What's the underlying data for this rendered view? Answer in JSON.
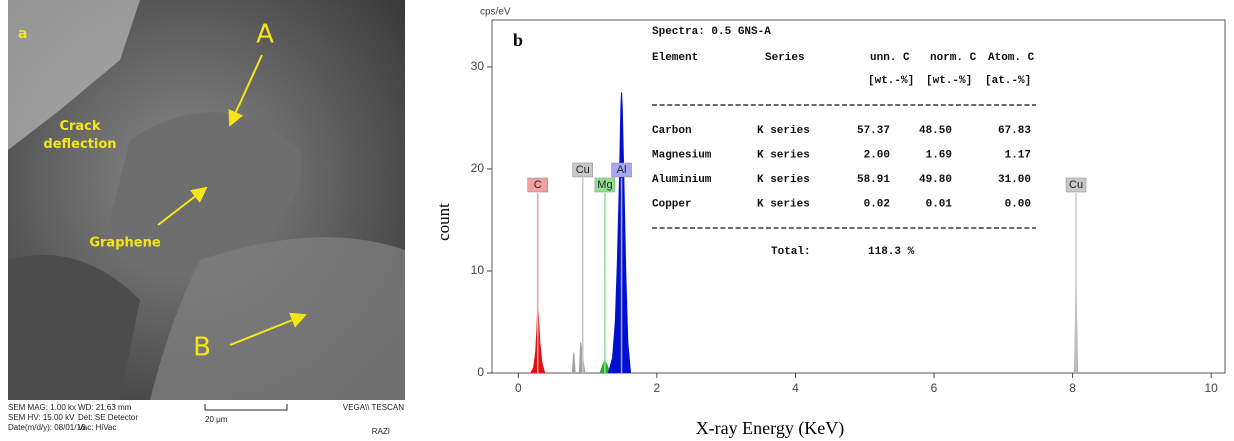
{
  "sem_image": {
    "panel": "a",
    "labels": [
      "A",
      "B",
      "Crack deflection",
      "Graphene"
    ],
    "footer": [
      "SEM MAG: 1.00 kx",
      "WD: 21.63 mm",
      "SEM HV: 15.00 kV",
      "Det: SE Detector",
      "Date(m/d/y): 08/01/16",
      "Vac: HiVac"
    ],
    "scale_bar": "20 μm",
    "brand": "VEGA\\\\ TESCAN",
    "operator": "RAZI"
  },
  "chart_data": {
    "type": "area",
    "panel": "b",
    "unit_label": "cps/eV",
    "xlabel": "X-ray Energy (KeV)",
    "ylabel": "count",
    "xlim": [
      -0.38,
      10.2
    ],
    "ylim": [
      0,
      34.6
    ],
    "xticks": [
      0,
      2,
      4,
      6,
      8,
      10
    ],
    "yticks": [
      0,
      10,
      20,
      30
    ],
    "series": [
      {
        "name": "C",
        "color": "#e01010",
        "x": [
          0.18,
          0.22,
          0.25,
          0.27,
          0.28,
          0.29,
          0.31,
          0.34,
          0.38
        ],
        "values": [
          0,
          0.5,
          2,
          4.5,
          6.6,
          5.5,
          3,
          1,
          0
        ]
      },
      {
        "name": "Cu",
        "color": "#a0a0a0",
        "x": [
          0.78,
          0.8,
          0.82,
          null,
          0.88,
          0.9,
          0.93,
          0.96,
          null,
          8.03,
          8.05,
          8.07
        ],
        "values": [
          0,
          2,
          0,
          null,
          0,
          3,
          1.5,
          0,
          null,
          0,
          8.7,
          0
        ]
      },
      {
        "name": "Mg",
        "color": "#20b020",
        "x": [
          1.18,
          1.22,
          1.25,
          1.28,
          1.32
        ],
        "values": [
          0,
          0.8,
          1.2,
          0.8,
          0
        ]
      },
      {
        "name": "Al",
        "color": "#0010d0",
        "x": [
          1.3,
          1.36,
          1.4,
          1.43,
          1.46,
          1.48,
          1.49,
          1.5,
          1.52,
          1.55,
          1.58,
          1.62
        ],
        "values": [
          0,
          1.5,
          5,
          11,
          19,
          26,
          27.5,
          26,
          20,
          10,
          3,
          0
        ]
      }
    ],
    "markers": [
      {
        "label": "C",
        "x": 0.28,
        "color": "#f4a0a0"
      },
      {
        "label": "Cu",
        "x": 0.93,
        "color": "#c8c8c8"
      },
      {
        "label": "Mg",
        "x": 1.25,
        "color": "#90e090"
      },
      {
        "label": "Al",
        "x": 1.49,
        "color": "#a8a8f0"
      },
      {
        "label": "Cu",
        "x": 8.05,
        "color": "#c8c8c8"
      }
    ],
    "table": {
      "title": "Spectra: 0.5 GNS-A",
      "header": [
        "Element",
        "Series",
        "unn. C",
        "norm. C",
        "Atom. C"
      ],
      "units": [
        "[wt.-%]",
        "[wt.-%]",
        "[at.-%]"
      ],
      "rows": [
        [
          "Carbon",
          "K series",
          "57.37",
          "48.50",
          "67.83"
        ],
        [
          "Magnesium",
          "K series",
          "2.00",
          "1.69",
          "1.17"
        ],
        [
          "Aluminium",
          "K series",
          "58.91",
          "49.80",
          "31.00"
        ],
        [
          "Copper",
          "K series",
          "0.02",
          "0.01",
          "0.00"
        ]
      ],
      "total_label": "Total:",
      "total": "118.3 %"
    }
  }
}
